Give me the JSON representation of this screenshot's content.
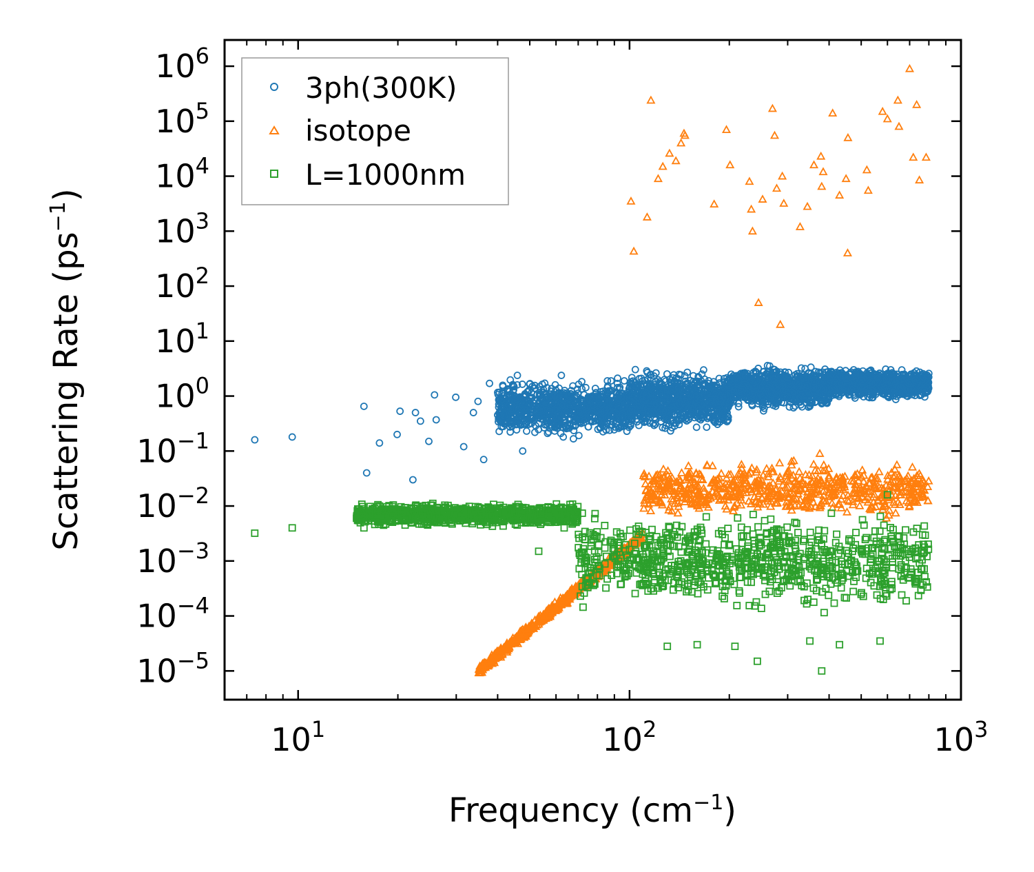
{
  "chart_data": {
    "type": "scatter",
    "title": "",
    "xlabel": "Frequency (cm",
    "xlabel_sup": "−1",
    "xlabel_end": ")",
    "ylabel": "Scattering Rate (ps",
    "ylabel_sup": "−1",
    "ylabel_end": ")",
    "xscale": "log",
    "yscale": "log",
    "xlim": [
      6,
      1000
    ],
    "ylim": [
      3e-06,
      3000000.0
    ],
    "x_ticks": [
      {
        "value": 10,
        "base": "10",
        "exp": "1"
      },
      {
        "value": 100,
        "base": "10",
        "exp": "2"
      },
      {
        "value": 1000,
        "base": "10",
        "exp": "3"
      }
    ],
    "y_ticks": [
      {
        "value": 1e-05,
        "base": "10",
        "exp": "−5"
      },
      {
        "value": 0.0001,
        "base": "10",
        "exp": "−4"
      },
      {
        "value": 0.001,
        "base": "10",
        "exp": "−3"
      },
      {
        "value": 0.01,
        "base": "10",
        "exp": "−2"
      },
      {
        "value": 0.1,
        "base": "10",
        "exp": "−1"
      },
      {
        "value": 1,
        "base": "10",
        "exp": "0"
      },
      {
        "value": 10,
        "base": "10",
        "exp": "1"
      },
      {
        "value": 100,
        "base": "10",
        "exp": "2"
      },
      {
        "value": 1000,
        "base": "10",
        "exp": "3"
      },
      {
        "value": 10000,
        "base": "10",
        "exp": "4"
      },
      {
        "value": 100000,
        "base": "10",
        "exp": "5"
      },
      {
        "value": 1000000,
        "base": "10",
        "exp": "6"
      }
    ],
    "legend_position": "top-left",
    "series": [
      {
        "name": "3ph(300K)",
        "marker": "circle",
        "color": "#1f77b4",
        "sample_points": [
          [
            7.4,
            0.16
          ],
          [
            9.6,
            0.18
          ],
          [
            15.8,
            0.65
          ],
          [
            16.1,
            0.04
          ],
          [
            17.6,
            0.14
          ],
          [
            19.9,
            0.2
          ],
          [
            20.3,
            0.53
          ],
          [
            22.2,
            0.03
          ],
          [
            22.6,
            0.5
          ],
          [
            23.4,
            0.35
          ],
          [
            24.8,
            0.15
          ],
          [
            25.8,
            1.05
          ],
          [
            26.1,
            0.37
          ],
          [
            29.9,
            0.95
          ],
          [
            31.6,
            0.12
          ],
          [
            33.8,
            0.5
          ],
          [
            34.9,
            0.8
          ],
          [
            36.3,
            0.07
          ],
          [
            37.8,
            1.7
          ],
          [
            40.2,
            0.34
          ],
          [
            44.7,
            1.3
          ],
          [
            47.6,
            0.1
          ],
          [
            50.3,
            0.9
          ],
          [
            55.6,
            0.3
          ],
          [
            59.7,
            1.6
          ],
          [
            63.1,
            0.18
          ],
          [
            70.8,
            0.45
          ]
        ],
        "bands": [
          {
            "x_from": 40,
            "x_to": 100,
            "y_low": 0.15,
            "y_high": 2.5
          },
          {
            "x_from": 100,
            "x_to": 200,
            "y_low": 0.2,
            "y_high": 3.5
          },
          {
            "x_from": 200,
            "x_to": 400,
            "y_low": 0.5,
            "y_high": 4.0
          },
          {
            "x_from": 400,
            "x_to": 800,
            "y_low": 0.8,
            "y_high": 3.5
          }
        ]
      },
      {
        "name": "isotope",
        "marker": "triangle",
        "color": "#ff7f0e",
        "sample_points": [
          [
            101,
            3500
          ],
          [
            103,
            430
          ],
          [
            113,
            1800
          ],
          [
            116,
            240000
          ],
          [
            122,
            9000
          ],
          [
            126,
            15000
          ],
          [
            132,
            26000
          ],
          [
            138,
            19000
          ],
          [
            143,
            40000
          ],
          [
            146,
            60000
          ],
          [
            147,
            55000
          ],
          [
            180,
            3100
          ],
          [
            196,
            70000
          ],
          [
            201,
            16000
          ],
          [
            230,
            8000
          ],
          [
            233,
            2500
          ],
          [
            235,
            1000
          ],
          [
            245,
            50
          ],
          [
            252,
            3800
          ],
          [
            270,
            170000
          ],
          [
            274,
            55000
          ],
          [
            278,
            6000
          ],
          [
            285,
            20
          ],
          [
            289,
            10000
          ],
          [
            292,
            3200
          ],
          [
            327,
            1200
          ],
          [
            344,
            2800
          ],
          [
            360,
            16000
          ],
          [
            378,
            23000
          ],
          [
            380,
            6500
          ],
          [
            384,
            12000
          ],
          [
            410,
            140000
          ],
          [
            430,
            4500
          ],
          [
            450,
            9000
          ],
          [
            455,
            400
          ],
          [
            456,
            50000
          ],
          [
            520,
            13000
          ],
          [
            525,
            5500
          ],
          [
            580,
            150000
          ],
          [
            600,
            110000
          ],
          [
            645,
            240000
          ],
          [
            650,
            80000
          ],
          [
            700,
            900000
          ],
          [
            718,
            22000
          ],
          [
            735,
            200000
          ],
          [
            749,
            8500
          ],
          [
            785,
            22000
          ],
          [
            150,
            0.02
          ],
          [
            375,
            0.09
          ],
          [
            390,
            0.045
          ]
        ],
        "bands": [
          {
            "x_from": 35,
            "x_to": 110,
            "y_low": 1e-05,
            "y_high": 0.003,
            "trend": "rising"
          },
          {
            "x_from": 110,
            "x_to": 800,
            "y_low": 0.005,
            "y_high": 0.08
          }
        ]
      },
      {
        "name": "L=1000nm",
        "marker": "square",
        "color": "#2ca02c",
        "sample_points": [
          [
            7.4,
            0.0032
          ],
          [
            9.6,
            0.004
          ],
          [
            15.8,
            0.004
          ],
          [
            19.7,
            0.0055
          ],
          [
            22.3,
            0.009
          ],
          [
            24.6,
            0.0045
          ],
          [
            27.9,
            0.006
          ],
          [
            33.8,
            0.008
          ],
          [
            45.8,
            0.0045
          ],
          [
            53.2,
            0.0015
          ],
          [
            63.5,
            0.004
          ],
          [
            130,
            2.8e-05
          ],
          [
            160,
            3e-05
          ],
          [
            208,
            2.8e-05
          ],
          [
            243,
            1.5e-05
          ],
          [
            350,
            3.5e-05
          ],
          [
            380,
            1e-05
          ],
          [
            430,
            3e-05
          ],
          [
            570,
            3.5e-05
          ],
          [
            600,
            0.016
          ]
        ],
        "bands": [
          {
            "x_from": 15,
            "x_to": 70,
            "y_low": 0.004,
            "y_high": 0.012
          },
          {
            "x_from": 70,
            "x_to": 800,
            "y_low": 0.0001,
            "y_high": 0.01
          }
        ]
      }
    ]
  }
}
